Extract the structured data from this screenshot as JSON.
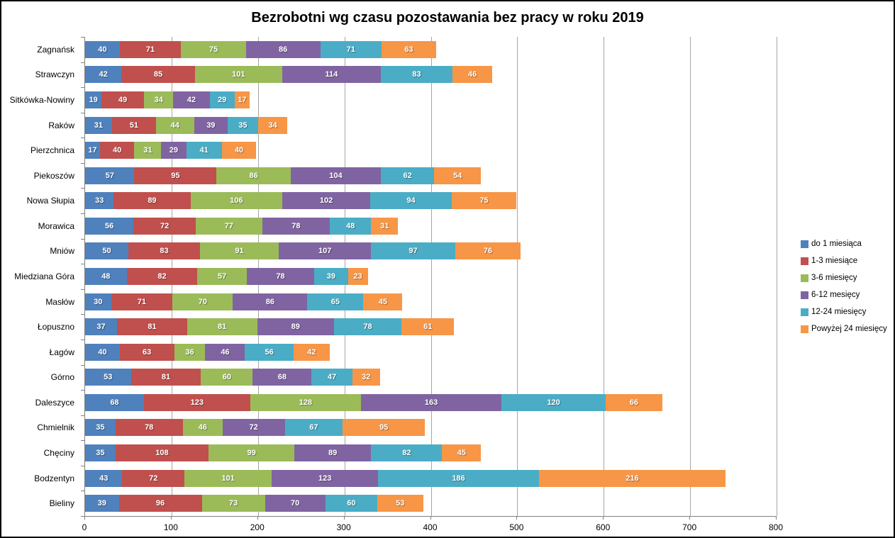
{
  "chart_data": {
    "type": "bar",
    "orientation": "horizontal-stacked",
    "title": "Bezrobotni wg czasu pozostawania bez pracy w roku 2019",
    "xlabel": "",
    "ylabel": "",
    "xlim": [
      0,
      800
    ],
    "x_ticks": [
      0,
      100,
      200,
      300,
      400,
      500,
      600,
      700,
      800
    ],
    "grid": "vertical",
    "legend_position": "right",
    "categories": [
      "Zagnańsk",
      "Strawczyn",
      "Sitkówka-Nowiny",
      "Raków",
      "Pierzchnica",
      "Piekoszów",
      "Nowa Słupia",
      "Morawica",
      "Mniów",
      "Miedziana Góra",
      "Masłów",
      "Łopuszno",
      "Łagów",
      "Górno",
      "Daleszyce",
      "Chmielnik",
      "Chęciny",
      "Bodzentyn",
      "Bieliny"
    ],
    "series": [
      {
        "name": "do 1 miesiąca",
        "color": "#4F81BD",
        "values": [
          40,
          42,
          19,
          31,
          17,
          57,
          33,
          56,
          50,
          48,
          30,
          37,
          40,
          53,
          68,
          35,
          35,
          43,
          39
        ]
      },
      {
        "name": "1-3 miesiące",
        "color": "#C0504D",
        "values": [
          71,
          85,
          49,
          51,
          40,
          95,
          89,
          72,
          83,
          82,
          71,
          81,
          63,
          81,
          123,
          78,
          108,
          72,
          96
        ]
      },
      {
        "name": "3-6 miesięcy",
        "color": "#9BBB59",
        "values": [
          75,
          101,
          34,
          44,
          31,
          86,
          106,
          77,
          91,
          57,
          70,
          81,
          36,
          60,
          128,
          46,
          99,
          101,
          73
        ]
      },
      {
        "name": "6-12 mesięcy",
        "color": "#8064A2",
        "values": [
          86,
          114,
          42,
          39,
          29,
          104,
          102,
          78,
          107,
          78,
          86,
          89,
          46,
          68,
          163,
          72,
          89,
          123,
          70
        ]
      },
      {
        "name": "12-24 miesięcy",
        "color": "#4BACC6",
        "values": [
          71,
          83,
          29,
          35,
          41,
          62,
          94,
          48,
          97,
          39,
          65,
          78,
          56,
          47,
          120,
          67,
          82,
          186,
          60
        ]
      },
      {
        "name": "Powyżej 24 miesięcy",
        "color": "#F79646",
        "values": [
          63,
          46,
          17,
          34,
          40,
          54,
          75,
          31,
          76,
          23,
          45,
          61,
          42,
          32,
          66,
          95,
          45,
          216,
          53
        ]
      }
    ],
    "colors": {
      "gridline": "#A6A6A6",
      "axis_line": "#808080",
      "bar_value_text": "#FFFFFF",
      "background": "#FFFFFF",
      "border": "#000000"
    }
  }
}
